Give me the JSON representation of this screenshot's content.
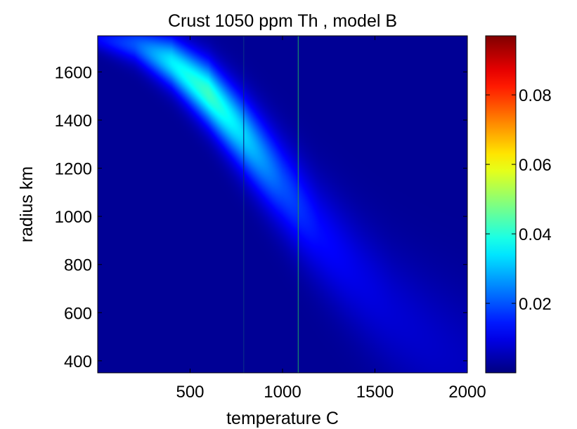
{
  "chart_data": {
    "type": "heatmap",
    "title": "Crust 1050 ppm Th , model B",
    "xlabel": "temperature C",
    "ylabel": "radius km",
    "xlim": [
      0,
      2000
    ],
    "ylim": [
      350,
      1750
    ],
    "x_ticks": [
      500,
      1000,
      1500,
      2000
    ],
    "y_ticks": [
      400,
      600,
      800,
      1000,
      1200,
      1400,
      1600
    ],
    "colorbar": {
      "colormap": "jet",
      "range": [
        0,
        0.097
      ],
      "ticks": [
        0.02,
        0.04,
        0.06,
        0.08
      ],
      "tick_labels": [
        "0.02",
        "0.04",
        "0.06",
        "0.08"
      ]
    },
    "ridge": {
      "temperature": [
        0,
        200,
        400,
        600,
        800,
        1000,
        1200,
        1400,
        1600,
        1800,
        2000
      ],
      "radius": [
        1740,
        1715,
        1640,
        1510,
        1330,
        1130,
        930,
        760,
        600,
        480,
        380
      ],
      "peak_value": [
        0.01,
        0.018,
        0.033,
        0.04,
        0.03,
        0.018,
        0.011,
        0.008,
        0.006,
        0.005,
        0.004
      ]
    },
    "vertical_lines": [
      {
        "temperature": 790,
        "color": "#0a2a8a"
      },
      {
        "temperature": 1085,
        "color": "#1a8a6a"
      }
    ],
    "background_value": 0.002
  }
}
